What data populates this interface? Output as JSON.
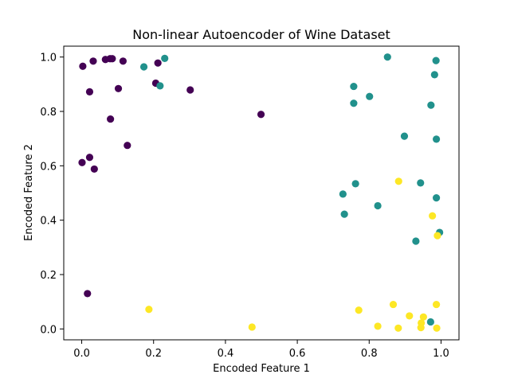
{
  "chart_data": {
    "type": "scatter",
    "title": "Non-linear Autoencoder of Wine Dataset",
    "xlabel": "Encoded Feature 1",
    "ylabel": "Encoded Feature 2",
    "xlim": [
      -0.05,
      1.05
    ],
    "ylim": [
      -0.04,
      1.04
    ],
    "xticks": [
      0.0,
      0.2,
      0.4,
      0.6,
      0.8,
      1.0
    ],
    "xtick_labels": [
      "0.0",
      "0.2",
      "0.4",
      "0.6",
      "0.8",
      "1.0"
    ],
    "yticks": [
      0.0,
      0.2,
      0.4,
      0.6,
      0.8,
      1.0
    ],
    "ytick_labels": [
      "0.0",
      "0.2",
      "0.4",
      "0.6",
      "0.8",
      "1.0"
    ],
    "grid": false,
    "legend": "none",
    "series": [
      {
        "color": "#440154",
        "points": [
          [
            0.003,
            0.966
          ],
          [
            0.032,
            0.985
          ],
          [
            0.066,
            0.991
          ],
          [
            0.079,
            0.994
          ],
          [
            0.085,
            0.994
          ],
          [
            0.115,
            0.985
          ],
          [
            0.212,
            0.978
          ],
          [
            0.022,
            0.872
          ],
          [
            0.102,
            0.884
          ],
          [
            0.302,
            0.879
          ],
          [
            0.08,
            0.772
          ],
          [
            0.206,
            0.904
          ],
          [
            0.499,
            0.789
          ],
          [
            0.127,
            0.675
          ],
          [
            0.022,
            0.631
          ],
          [
            0.001,
            0.612
          ],
          [
            0.035,
            0.588
          ],
          [
            0.016,
            0.13
          ]
        ]
      },
      {
        "color": "#21918c",
        "points": [
          [
            0.231,
            0.995
          ],
          [
            0.173,
            0.964
          ],
          [
            0.218,
            0.894
          ],
          [
            0.851,
            1.0
          ],
          [
            0.986,
            0.987
          ],
          [
            0.757,
            0.892
          ],
          [
            0.982,
            0.935
          ],
          [
            0.757,
            0.83
          ],
          [
            0.801,
            0.855
          ],
          [
            0.972,
            0.823
          ],
          [
            0.898,
            0.709
          ],
          [
            0.987,
            0.698
          ],
          [
            0.762,
            0.534
          ],
          [
            0.943,
            0.537
          ],
          [
            0.727,
            0.496
          ],
          [
            0.987,
            0.482
          ],
          [
            0.824,
            0.453
          ],
          [
            0.731,
            0.422
          ],
          [
            0.996,
            0.355
          ],
          [
            0.93,
            0.323
          ],
          [
            0.971,
            0.026
          ]
        ]
      },
      {
        "color": "#fde725",
        "points": [
          [
            0.882,
            0.543
          ],
          [
            0.976,
            0.416
          ],
          [
            0.99,
            0.343
          ],
          [
            0.187,
            0.072
          ],
          [
            0.771,
            0.069
          ],
          [
            0.867,
            0.09
          ],
          [
            0.987,
            0.09
          ],
          [
            0.474,
            0.007
          ],
          [
            0.824,
            0.01
          ],
          [
            0.881,
            0.003
          ],
          [
            0.912,
            0.048
          ],
          [
            0.951,
            0.044
          ],
          [
            0.945,
            0.022
          ],
          [
            0.944,
            0.005
          ],
          [
            0.988,
            0.003
          ]
        ]
      }
    ]
  }
}
